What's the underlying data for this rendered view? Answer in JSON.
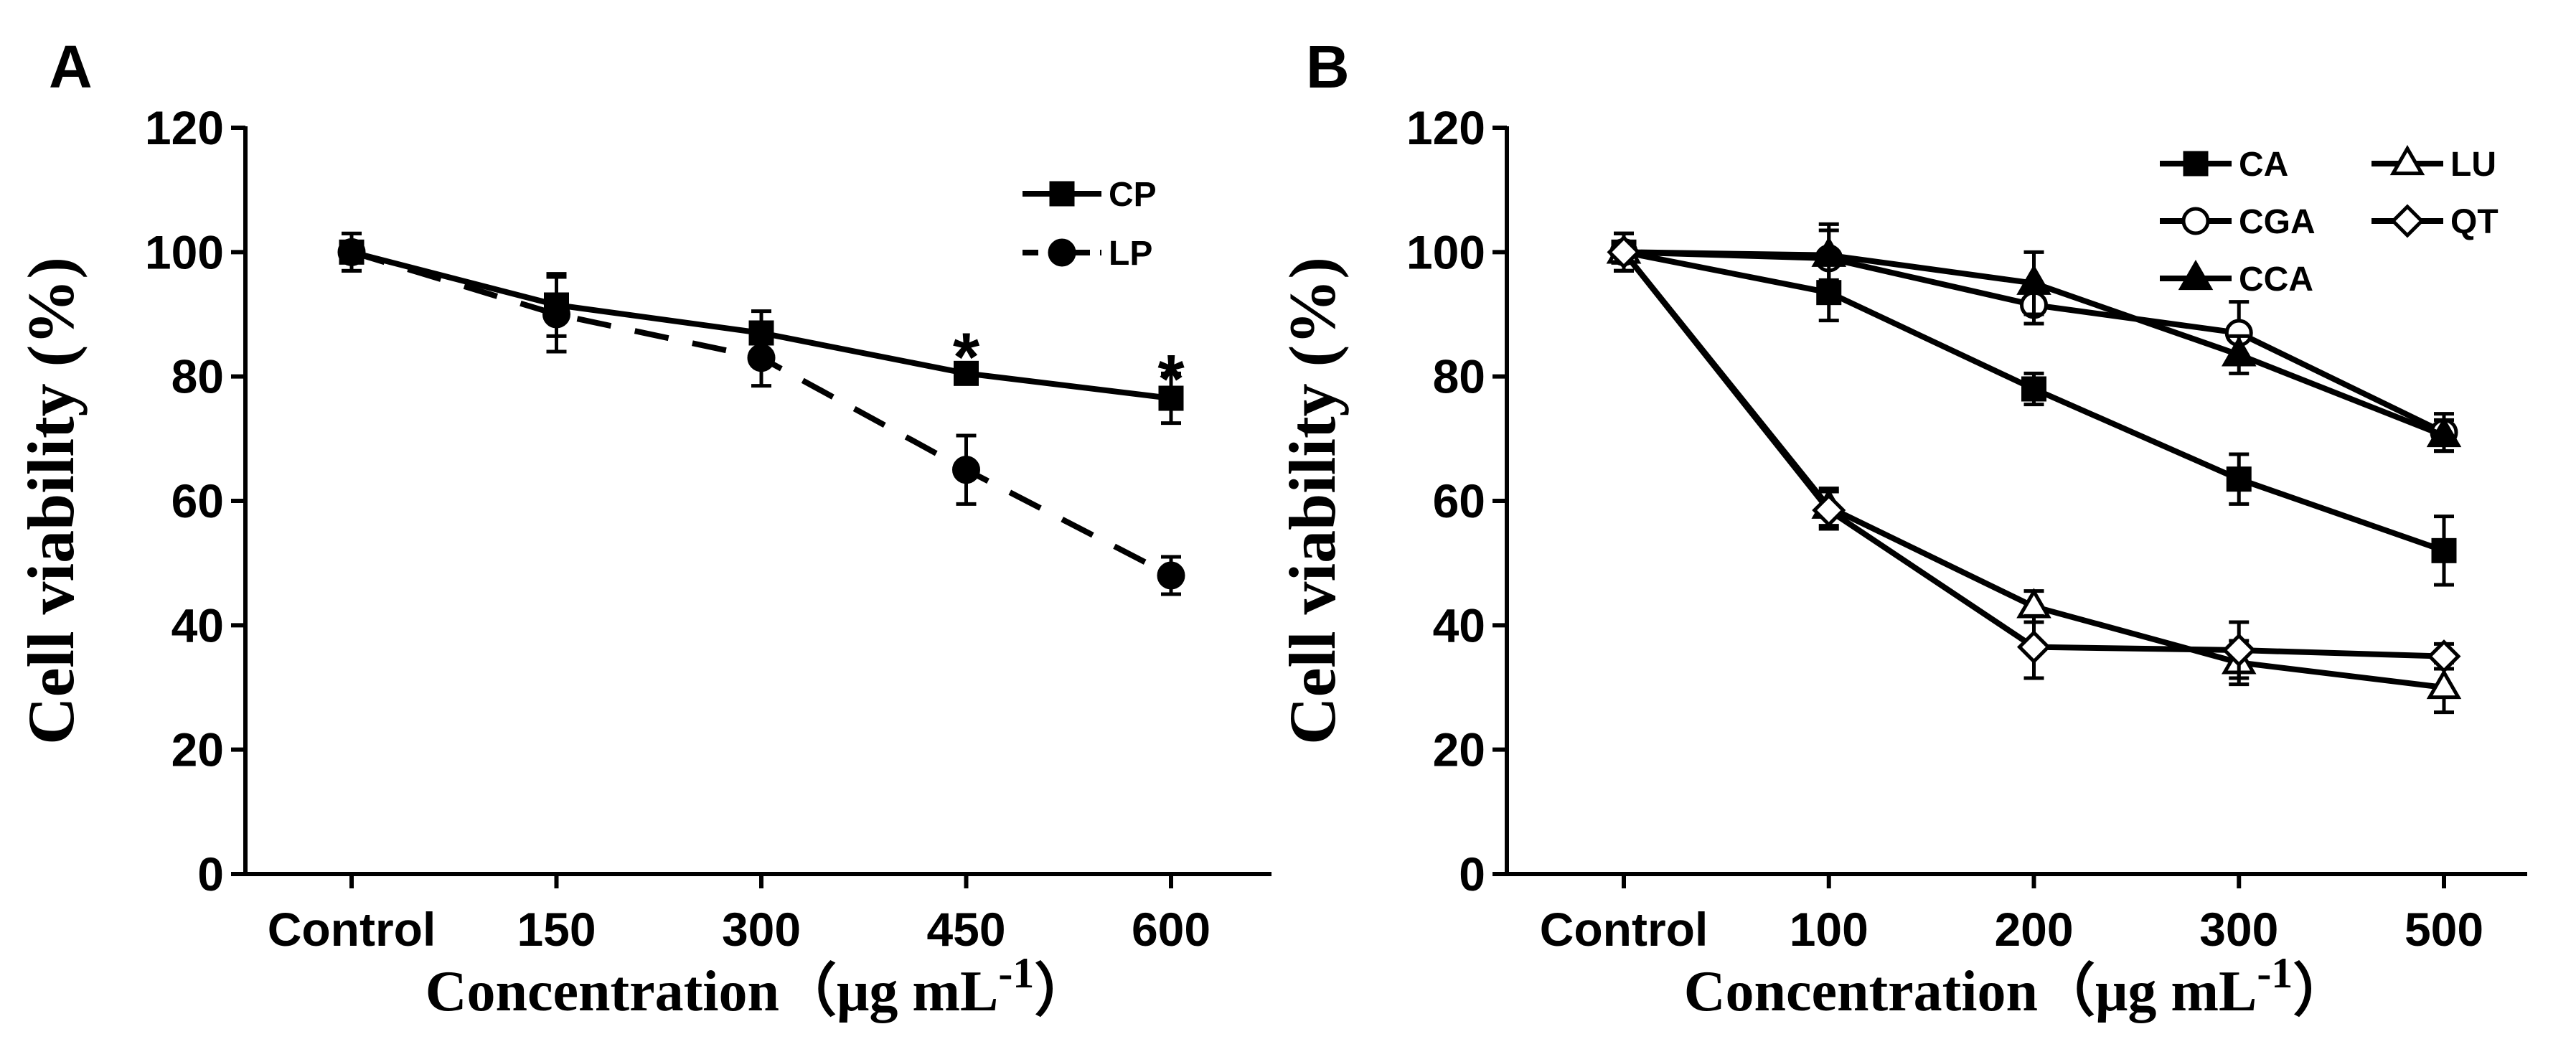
{
  "chart_data": [
    {
      "panel": "A",
      "type": "line",
      "categories": [
        "Control",
        "150",
        "300",
        "450",
        "600"
      ],
      "xlabel_main": "Concentration（μg mL",
      "xlabel_sup": "-1",
      "xlabel_end": "）",
      "ylabel": "Cell viability (%)",
      "ylim": [
        0,
        120
      ],
      "yticks": [
        "0",
        "20",
        "40",
        "60",
        "80",
        "100",
        "120"
      ],
      "legend_position": "top-right",
      "series": [
        {
          "name": "CP",
          "marker": "square-filled",
          "dash": "solid",
          "values": [
            100,
            91.5,
            87,
            80.5,
            76.5
          ],
          "errors": [
            3,
            5,
            3.5,
            1,
            4
          ]
        },
        {
          "name": "LP",
          "marker": "circle-filled",
          "dash": "dashed",
          "values": [
            100,
            90,
            83,
            65,
            48
          ],
          "errors": [
            3,
            6,
            4.5,
            5.5,
            3
          ]
        }
      ],
      "annotations": [
        {
          "text": "*",
          "category": "450",
          "y": 86
        },
        {
          "text": "*",
          "category": "600",
          "y": 82.5
        }
      ]
    },
    {
      "panel": "B",
      "type": "line",
      "categories": [
        "Control",
        "100",
        "200",
        "300",
        "500"
      ],
      "xlabel_main": "Concentration（μg mL",
      "xlabel_sup": "-1",
      "xlabel_end": "）",
      "ylabel": "Cell viability (%)",
      "ylim": [
        0,
        120
      ],
      "yticks": [
        "0",
        "20",
        "40",
        "60",
        "80",
        "100",
        "120"
      ],
      "legend_position": "top-right",
      "series": [
        {
          "name": "CA",
          "marker": "square-filled",
          "values": [
            100,
            93.5,
            78,
            63.5,
            52
          ],
          "errors": [
            3,
            4.5,
            2.5,
            4,
            5.5
          ]
        },
        {
          "name": "CGA",
          "marker": "circle-open",
          "values": [
            100,
            99,
            91.5,
            87,
            71
          ],
          "errors": [
            3,
            5.5,
            3,
            5,
            3
          ]
        },
        {
          "name": "CCA",
          "marker": "triangle-filled",
          "values": [
            100,
            99.5,
            95,
            83.5,
            70.5
          ],
          "errors": [
            3,
            4,
            5,
            3,
            2.5
          ]
        },
        {
          "name": "LU",
          "marker": "triangle-open",
          "values": [
            100,
            59,
            43,
            34,
            30
          ],
          "errors": [
            3,
            3,
            2.5,
            3.5,
            4
          ]
        },
        {
          "name": "QT",
          "marker": "diamond-open",
          "values": [
            100,
            58.5,
            36.5,
            36,
            35
          ],
          "errors": [
            3,
            3,
            5,
            4.5,
            2
          ]
        }
      ]
    }
  ]
}
